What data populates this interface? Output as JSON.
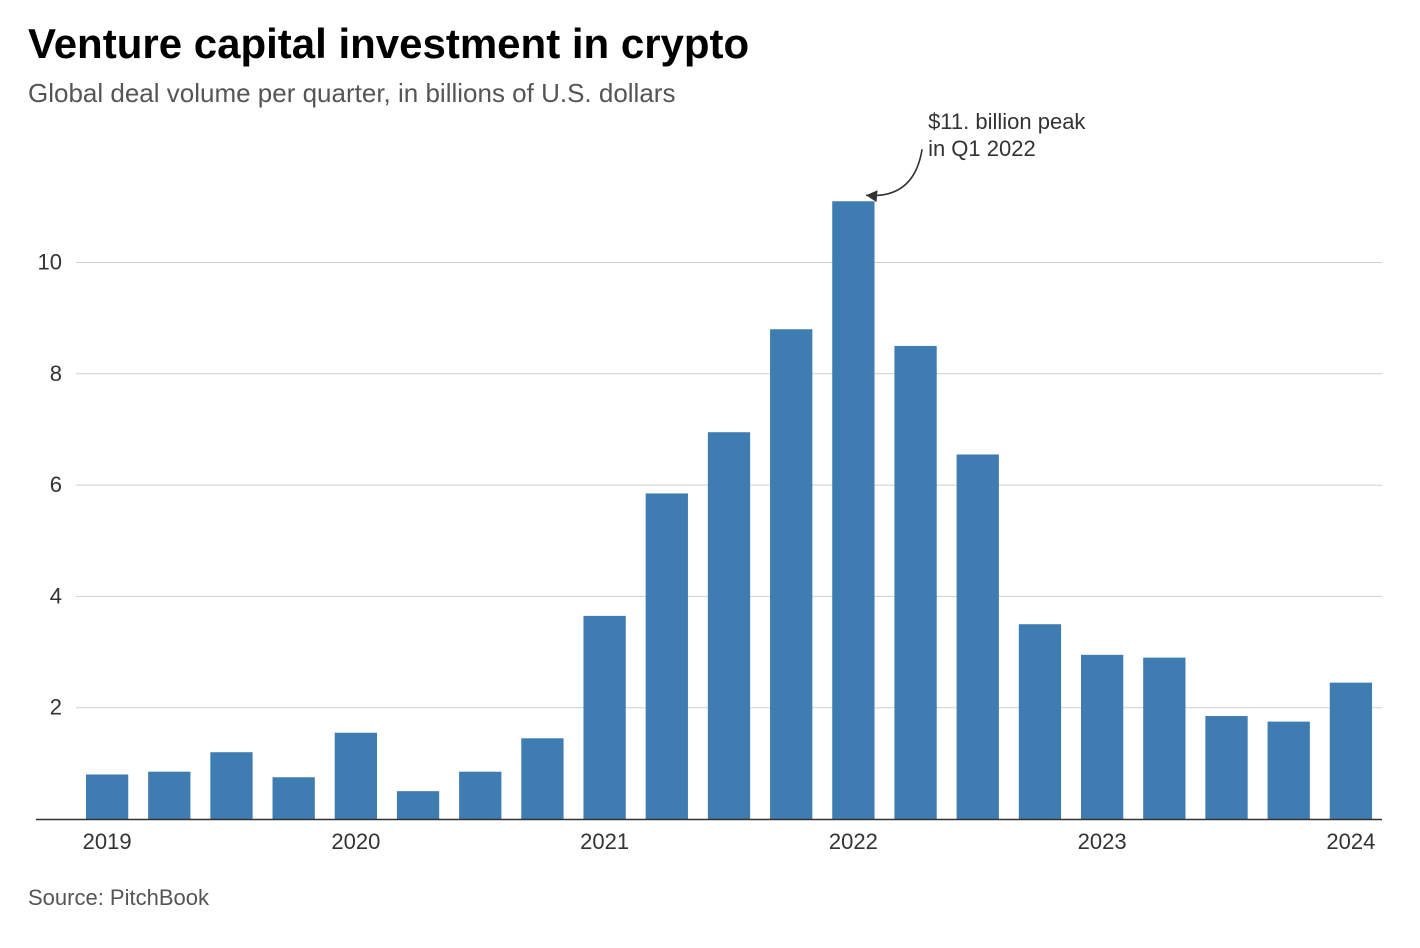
{
  "title": "Venture capital investment in crypto",
  "subtitle": "Global deal volume per quarter, in billions of U.S. dollars",
  "source": "Source: PitchBook",
  "chart": {
    "type": "bar",
    "background_color": "#ffffff",
    "bar_color": "#3e7cb1",
    "grid_color": "#cfcfcf",
    "axis_color": "#333333",
    "text_color": "#333333",
    "title_fontsize": 42,
    "subtitle_fontsize": 26,
    "label_fontsize": 22,
    "bar_width_ratio": 0.68,
    "ylim": [
      0,
      11.5
    ],
    "yticks": [
      2,
      4,
      6,
      8,
      10
    ],
    "xticks": [
      {
        "label": "2019",
        "index": 0
      },
      {
        "label": "2020",
        "index": 4
      },
      {
        "label": "2021",
        "index": 8
      },
      {
        "label": "2022",
        "index": 12
      },
      {
        "label": "2023",
        "index": 16
      },
      {
        "label": "2024",
        "index": 20
      }
    ],
    "values": [
      0.8,
      0.85,
      1.2,
      0.75,
      1.55,
      0.5,
      0.85,
      1.45,
      3.65,
      5.85,
      6.95,
      8.8,
      11.1,
      8.5,
      6.55,
      3.5,
      2.95,
      2.9,
      1.85,
      1.75,
      2.45
    ],
    "annotation": {
      "text": "$11. billion peak\nin Q1 2022",
      "target_index": 12,
      "arrow_color": "#333333"
    }
  }
}
